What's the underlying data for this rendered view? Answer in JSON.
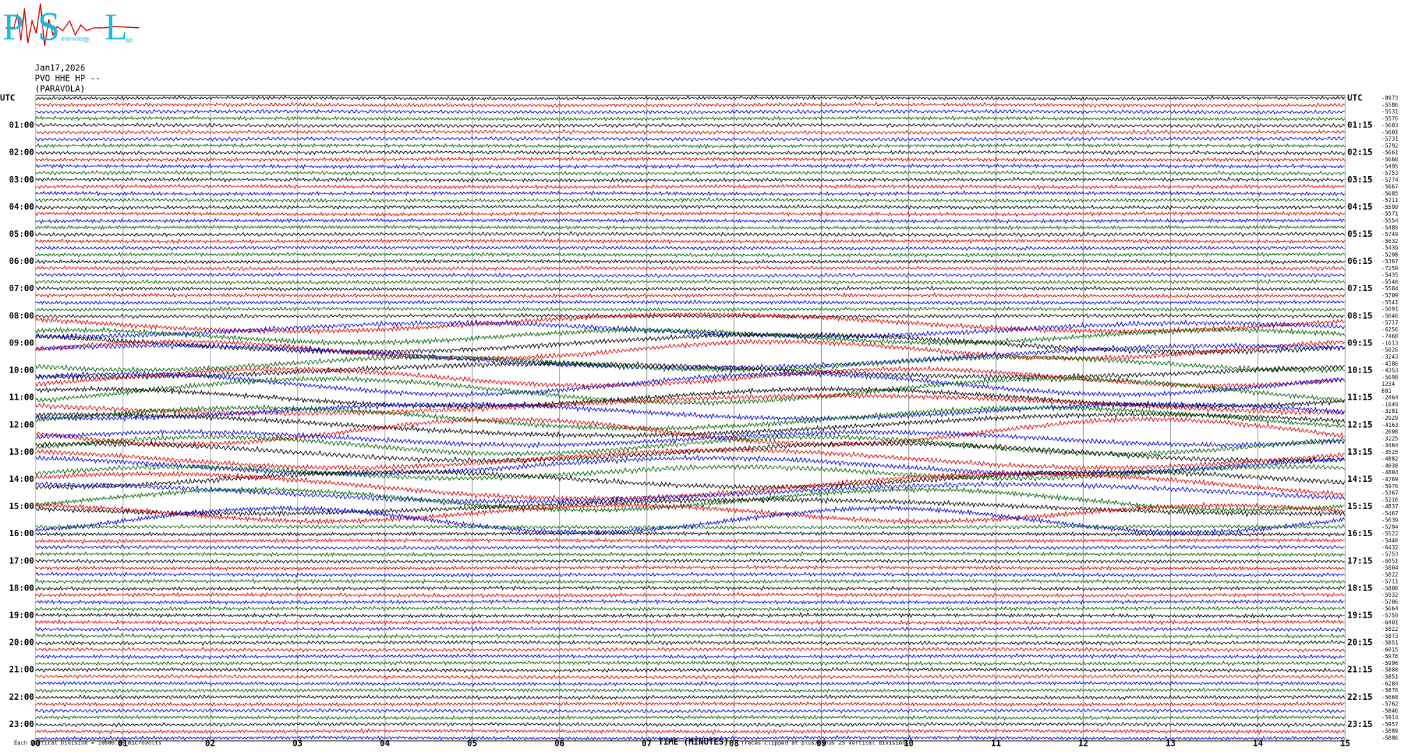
{
  "logo": {
    "p": "P",
    "s": "S",
    "l": "L",
    "seismology": "eismology",
    "lab": "ab"
  },
  "header": {
    "date": "Jan17,2026",
    "station": "PVO HHE HP --",
    "site": "(PARAVOLA)"
  },
  "left_labels": [
    "UTC",
    "01:00",
    "02:00",
    "03:00",
    "04:00",
    "05:00",
    "06:00",
    "07:00",
    "08:00",
    "09:00",
    "10:00",
    "11:00",
    "12:00",
    "13:00",
    "14:00",
    "15:00",
    "16:00",
    "17:00",
    "18:00",
    "19:00",
    "20:00",
    "21:00",
    "22:00",
    "23:00"
  ],
  "right_labels": [
    "UTC",
    "01:15",
    "02:15",
    "03:15",
    "04:15",
    "05:15",
    "06:15",
    "07:15",
    "08:15",
    "09:15",
    "10:15",
    "11:15",
    "12:15",
    "13:15",
    "14:15",
    "15:15",
    "16:15",
    "17:15",
    "18:15",
    "19:15",
    "20:15",
    "21:15",
    "22:15",
    "23:15"
  ],
  "trace_offsets": [
    -8973,
    -5586,
    -5531,
    -5576,
    -5603,
    -5601,
    -5731,
    -5792,
    -5661,
    -5660,
    -5495,
    -5753,
    -5774,
    -5667,
    -5685,
    -5711,
    -5599,
    -5571,
    -5554,
    -5489,
    -5749,
    -5632,
    -5439,
    -5298,
    -5367,
    -7259,
    -5435,
    -5540,
    -5584,
    -5709,
    -5541,
    -5091,
    -5646,
    -5717,
    -6256,
    -7468,
    -1613,
    -5026,
    -3243,
    -4186,
    -4353,
    -5698,
    1234,
    881,
    -2464,
    -1649,
    -3281,
    -2929,
    -4163,
    -2608,
    -3225,
    -3464,
    -3525,
    -4882,
    -4038,
    -4804,
    -4769,
    -5976,
    -5367,
    -5216,
    -4837,
    -5467,
    -5639,
    -5294,
    -5522,
    -5440,
    -6432,
    -5753,
    -6051,
    -5804,
    -5822,
    -5711,
    -5808,
    -5932,
    -5706,
    -5664,
    -5759,
    -6401,
    -5822,
    -5873,
    -5851,
    -6015,
    -5976,
    -5996,
    -5880,
    -5851,
    -6284,
    -5876,
    -5668,
    -5762,
    -5846,
    -5914,
    -5957,
    -5889,
    -5886
  ],
  "xaxis": {
    "xlim": [
      0,
      15
    ],
    "xticks": [
      {
        "value": 0,
        "label": "00"
      },
      {
        "value": 1,
        "label": "01"
      },
      {
        "value": 2,
        "label": "02"
      },
      {
        "value": 3,
        "label": "03"
      },
      {
        "value": 4,
        "label": "04"
      },
      {
        "value": 5,
        "label": "05"
      },
      {
        "value": 6,
        "label": "06"
      },
      {
        "value": 7,
        "label": "07"
      },
      {
        "value": 8,
        "label": "08"
      },
      {
        "value": 9,
        "label": "09"
      },
      10,
      11,
      12,
      13,
      14,
      15
    ],
    "title": "TIME (MINUTES)"
  },
  "footer": {
    "division": "Each Vertical Division = 10000.00 microvolts",
    "clipped": "Traces clipped at plus/minus 25 vertical divisions"
  },
  "trace_colors": [
    "#000000",
    "#e00000",
    "#0000e0",
    "#006400"
  ]
}
